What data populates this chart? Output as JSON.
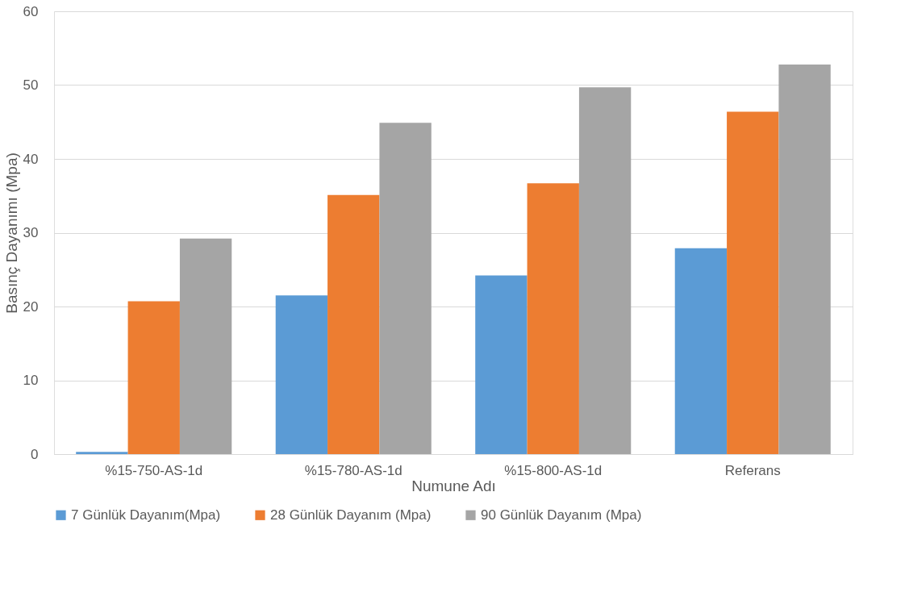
{
  "chart_data": {
    "type": "bar",
    "xlabel": "Numune Adı",
    "ylabel": "Basınç Dayanımı (Mpa)",
    "categories": [
      "%15-750-AS-1d",
      "%15-780-AS-1d",
      "%15-800-AS-1d",
      "Referans"
    ],
    "series": [
      {
        "name": "7 Günlük Dayanım(Mpa)",
        "color": "#5b9bd5",
        "values": [
          0.3,
          21.5,
          24.2,
          27.9
        ]
      },
      {
        "name": "28 Günlük Dayanım (Mpa)",
        "color": "#ed7d31",
        "values": [
          20.7,
          35.1,
          36.7,
          46.4
        ]
      },
      {
        "name": "90 Günlük Dayanım (Mpa)",
        "color": "#a5a5a5",
        "values": [
          29.2,
          44.9,
          49.7,
          52.8
        ]
      }
    ],
    "ylim": [
      0,
      60
    ],
    "yticks": [
      0,
      10,
      20,
      30,
      40,
      50,
      60
    ],
    "grid": "y",
    "legend": "bottom"
  }
}
